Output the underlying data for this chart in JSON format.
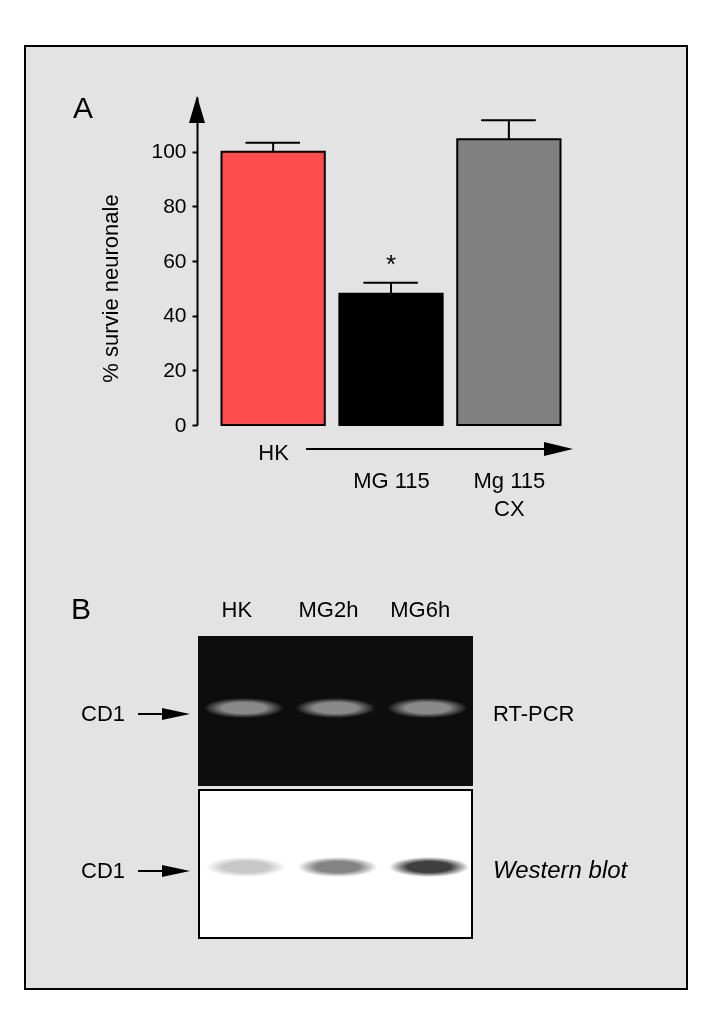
{
  "chart_data": [
    {
      "type": "bar",
      "title": "A",
      "ylabel": "% survie neuronale",
      "categories": [
        "HK",
        "MG 115",
        "Mg 115 CX"
      ],
      "values": [
        100,
        48,
        104.5
      ],
      "colors": [
        "#ff4d4d",
        "#000000",
        "#808080"
      ],
      "errors": [
        [
          100,
          103.3
        ],
        [
          48,
          52
        ],
        [
          104.5,
          111.5
        ]
      ],
      "ylim": [
        0,
        120
      ],
      "yticks": [
        0,
        20,
        40,
        60,
        80,
        100
      ],
      "annotations": [
        "*"
      ]
    },
    {
      "type": "other",
      "title": "B",
      "categories": [
        "HK",
        "MG2h",
        "MG6h"
      ],
      "annotations": [
        "CD1",
        "RT-PCR",
        "CD1",
        "Western blot"
      ]
    }
  ]
}
